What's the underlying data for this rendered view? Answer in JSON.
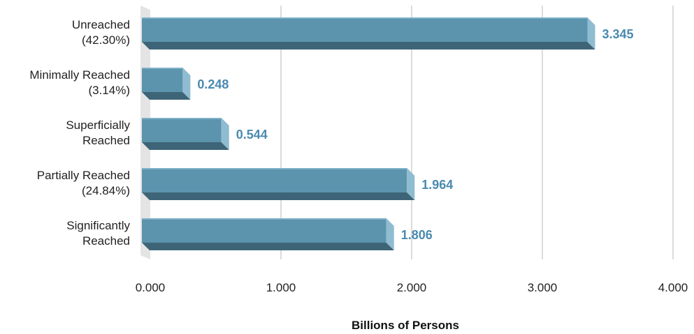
{
  "chart_data": {
    "type": "bar",
    "orientation": "horizontal",
    "categories": [
      [
        "Unreached",
        "(42.30%)"
      ],
      [
        "Minimally Reached",
        "(3.14%)"
      ],
      [
        "Superficially",
        "Reached"
      ],
      [
        "Partially Reached",
        "(24.84%)"
      ],
      [
        "Significantly",
        "Reached"
      ]
    ],
    "values": [
      3.345,
      0.248,
      0.544,
      1.964,
      1.806
    ],
    "value_labels": [
      "3.345",
      "0.248",
      "0.544",
      "1.964",
      "1.806"
    ],
    "xlabel": "Billions of Persons",
    "ylabel": "",
    "xlim": [
      0,
      4
    ],
    "xticks": [
      0,
      1,
      2,
      3,
      4
    ],
    "xtick_labels": [
      "0.000",
      "1.000",
      "2.000",
      "3.000",
      "4.000"
    ],
    "grid": true,
    "legend": "none",
    "colors": {
      "bar_front": "#5c93ad",
      "bar_top": "#7eb0c8",
      "bar_bottom": "#3e6577",
      "bar_side": "#8fbcd1",
      "value_label": "#4a8ab0",
      "gridline": "#cfcfcf",
      "floor": "#e4e4e4"
    }
  }
}
